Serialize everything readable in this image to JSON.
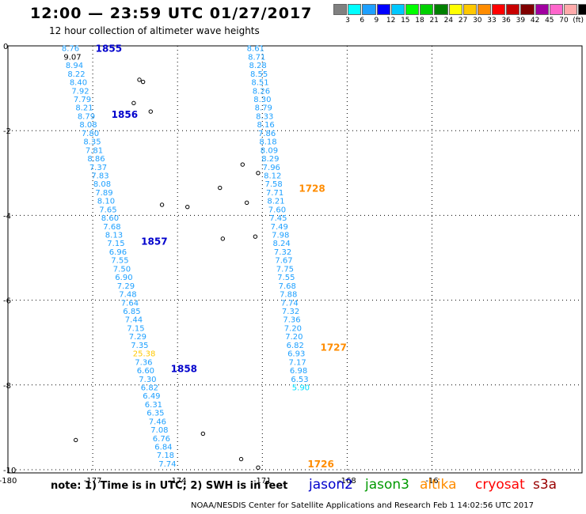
{
  "header": {
    "title": "12:00 — 23:59 UTC 01/27/2017",
    "subtitle": "12 hour collection of altimeter wave heights"
  },
  "scale": {
    "colors": [
      "#808080",
      "#00ffff",
      "#1ea0ff",
      "#0000ff",
      "#00c8ff",
      "#00ff00",
      "#00d000",
      "#008000",
      "#ffff00",
      "#ffc800",
      "#ff8c00",
      "#ff0000",
      "#c80000",
      "#800000",
      "#a000a0",
      "#ff66cc",
      "#ffaaaa",
      "#000000"
    ],
    "labels": [
      "3",
      "6",
      "9",
      "12",
      "15",
      "18",
      "21",
      "24",
      "27",
      "30",
      "33",
      "36",
      "39",
      "42",
      "45",
      "70",
      "(ft)"
    ]
  },
  "map": {
    "lon_ticks": [
      "-180",
      "-177",
      "-174",
      "-171",
      "-168",
      "-16"
    ],
    "lat_ticks": [
      "0",
      "-2",
      "-4",
      "-6",
      "-8",
      "-10"
    ]
  },
  "tracks": [
    {
      "satellite": "jason2",
      "pass_labels": [
        {
          "text": "1855",
          "lat": -0.05
        },
        {
          "text": "1856",
          "lat": -1.6
        },
        {
          "text": "1857",
          "lat": -4.6
        },
        {
          "text": "1858",
          "lat": -7.6
        }
      ],
      "values": [
        {
          "text": "8.76",
          "lat": -0.05,
          "lon": -178.1
        },
        {
          "text": "9.07",
          "lat": -0.25,
          "lon": -178.03,
          "color": "#000000"
        },
        {
          "text": "8.94",
          "lat": -0.45,
          "lon": -177.96
        },
        {
          "text": "8.22",
          "lat": -0.65,
          "lon": -177.89
        },
        {
          "text": "8.40",
          "lat": -0.85,
          "lon": -177.82
        },
        {
          "text": "7.92",
          "lat": -1.05,
          "lon": -177.75
        },
        {
          "text": "7.79",
          "lat": -1.25,
          "lon": -177.68
        },
        {
          "text": "8.21",
          "lat": -1.45,
          "lon": -177.61
        },
        {
          "text": "8.79",
          "lat": -1.65,
          "lon": -177.54
        },
        {
          "text": "8.08",
          "lat": -1.85,
          "lon": -177.47
        },
        {
          "text": "7.80",
          "lat": -2.05,
          "lon": -177.4
        },
        {
          "text": "8.35",
          "lat": -2.25,
          "lon": -177.33
        },
        {
          "text": "7.81",
          "lat": -2.45,
          "lon": -177.26
        },
        {
          "text": "8.86",
          "lat": -2.65,
          "lon": -177.19
        },
        {
          "text": "7.37",
          "lat": -2.85,
          "lon": -177.12
        },
        {
          "text": "7.83",
          "lat": -3.05,
          "lon": -177.05
        },
        {
          "text": "8.08",
          "lat": -3.25,
          "lon": -176.98
        },
        {
          "text": "7.89",
          "lat": -3.45,
          "lon": -176.91
        },
        {
          "text": "8.10",
          "lat": -3.65,
          "lon": -176.84
        },
        {
          "text": "7.65",
          "lat": -3.85,
          "lon": -176.77
        },
        {
          "text": "8.60",
          "lat": -4.05,
          "lon": -176.7
        },
        {
          "text": "7.68",
          "lat": -4.25,
          "lon": -176.63
        },
        {
          "text": "8.13",
          "lat": -4.45,
          "lon": -176.56
        },
        {
          "text": "7.15",
          "lat": -4.65,
          "lon": -176.49
        },
        {
          "text": "6.96",
          "lat": -4.85,
          "lon": -176.42
        },
        {
          "text": "7.55",
          "lat": -5.05,
          "lon": -176.35
        },
        {
          "text": "7.50",
          "lat": -5.25,
          "lon": -176.28
        },
        {
          "text": "6.90",
          "lat": -5.45,
          "lon": -176.21
        },
        {
          "text": "7.29",
          "lat": -5.65,
          "lon": -176.14
        },
        {
          "text": "7.48",
          "lat": -5.85,
          "lon": -176.07
        },
        {
          "text": "7.64",
          "lat": -6.05,
          "lon": -176.0
        },
        {
          "text": "6.85",
          "lat": -6.25,
          "lon": -175.93
        },
        {
          "text": "7.44",
          "lat": -6.45,
          "lon": -175.86
        },
        {
          "text": "7.15",
          "lat": -6.65,
          "lon": -175.79
        },
        {
          "text": "7.29",
          "lat": -6.85,
          "lon": -175.72
        },
        {
          "text": "7.35",
          "lat": -7.05,
          "lon": -175.65
        },
        {
          "text": "25.38",
          "lat": -7.25,
          "lon": -175.58,
          "color": "#ffc800"
        },
        {
          "text": "7.36",
          "lat": -7.45,
          "lon": -175.51
        },
        {
          "text": "6.60",
          "lat": -7.65,
          "lon": -175.44
        },
        {
          "text": "7.30",
          "lat": -7.85,
          "lon": -175.37
        },
        {
          "text": "6.82",
          "lat": -8.05,
          "lon": -175.3
        },
        {
          "text": "6.49",
          "lat": -8.25,
          "lon": -175.23
        },
        {
          "text": "6.31",
          "lat": -8.45,
          "lon": -175.16
        },
        {
          "text": "6.35",
          "lat": -8.65,
          "lon": -175.09
        },
        {
          "text": "7.46",
          "lat": -8.85,
          "lon": -175.02
        },
        {
          "text": "7.08",
          "lat": -9.05,
          "lon": -174.95
        },
        {
          "text": "6.76",
          "lat": -9.25,
          "lon": -174.88
        },
        {
          "text": "6.84",
          "lat": -9.45,
          "lon": -174.81
        },
        {
          "text": "7.18",
          "lat": -9.65,
          "lon": -174.74
        },
        {
          "text": "7.74",
          "lat": -9.85,
          "lon": -174.67
        }
      ]
    },
    {
      "satellite": "altika",
      "pass_labels": [
        {
          "text": "1728",
          "lat": -3.35
        },
        {
          "text": "1727",
          "lat": -7.1
        },
        {
          "text": "1726",
          "lat": -9.85
        }
      ],
      "values": [
        {
          "text": "8.61",
          "lat": -0.05,
          "lon": -171.55
        },
        {
          "text": "8.71",
          "lat": -0.25,
          "lon": -171.51
        },
        {
          "text": "8.28",
          "lat": -0.45,
          "lon": -171.47
        },
        {
          "text": "8.55",
          "lat": -0.65,
          "lon": -171.43
        },
        {
          "text": "8.51",
          "lat": -0.85,
          "lon": -171.39
        },
        {
          "text": "8.26",
          "lat": -1.05,
          "lon": -171.35
        },
        {
          "text": "8.30",
          "lat": -1.25,
          "lon": -171.31
        },
        {
          "text": "8.79",
          "lat": -1.45,
          "lon": -171.27
        },
        {
          "text": "8.33",
          "lat": -1.65,
          "lon": -171.23
        },
        {
          "text": "8.16",
          "lat": -1.85,
          "lon": -171.19
        },
        {
          "text": "7.86",
          "lat": -2.05,
          "lon": -171.15
        },
        {
          "text": "8.18",
          "lat": -2.25,
          "lon": -171.11
        },
        {
          "text": "8.09",
          "lat": -2.45,
          "lon": -171.07
        },
        {
          "text": "8.29",
          "lat": -2.65,
          "lon": -171.03
        },
        {
          "text": "7.96",
          "lat": -2.85,
          "lon": -170.99
        },
        {
          "text": "8.12",
          "lat": -3.05,
          "lon": -170.95
        },
        {
          "text": "7.58",
          "lat": -3.25,
          "lon": -170.91
        },
        {
          "text": "7.71",
          "lat": -3.45,
          "lon": -170.87
        },
        {
          "text": "8.21",
          "lat": -3.65,
          "lon": -170.83
        },
        {
          "text": "7.60",
          "lat": -3.85,
          "lon": -170.79
        },
        {
          "text": "7.45",
          "lat": -4.05,
          "lon": -170.75
        },
        {
          "text": "7.49",
          "lat": -4.25,
          "lon": -170.71
        },
        {
          "text": "7.98",
          "lat": -4.45,
          "lon": -170.67
        },
        {
          "text": "8.24",
          "lat": -4.65,
          "lon": -170.63
        },
        {
          "text": "7.32",
          "lat": -4.85,
          "lon": -170.59
        },
        {
          "text": "7.67",
          "lat": -5.05,
          "lon": -170.55
        },
        {
          "text": "7.75",
          "lat": -5.25,
          "lon": -170.51
        },
        {
          "text": "7.55",
          "lat": -5.45,
          "lon": -170.47
        },
        {
          "text": "7.68",
          "lat": -5.65,
          "lon": -170.43
        },
        {
          "text": "7.88",
          "lat": -5.85,
          "lon": -170.39
        },
        {
          "text": "7.74",
          "lat": -6.05,
          "lon": -170.35
        },
        {
          "text": "7.32",
          "lat": -6.25,
          "lon": -170.31
        },
        {
          "text": "7.36",
          "lat": -6.45,
          "lon": -170.27
        },
        {
          "text": "7.20",
          "lat": -6.65,
          "lon": -170.23
        },
        {
          "text": "7.20",
          "lat": -6.85,
          "lon": -170.19
        },
        {
          "text": "6.82",
          "lat": -7.05,
          "lon": -170.15
        },
        {
          "text": "6.93",
          "lat": -7.25,
          "lon": -170.11
        },
        {
          "text": "7.17",
          "lat": -7.45,
          "lon": -170.07
        },
        {
          "text": "6.98",
          "lat": -7.65,
          "lon": -170.03
        },
        {
          "text": "6.53",
          "lat": -7.85,
          "lon": -169.99
        },
        {
          "text": "5.90",
          "lat": -8.05,
          "lon": -169.95,
          "color": "#00e0ff"
        }
      ]
    }
  ],
  "islands": [
    {
      "lat": -0.8,
      "lon": -175.35
    },
    {
      "lat": -0.85,
      "lon": -175.22
    },
    {
      "lat": -1.35,
      "lon": -175.55
    },
    {
      "lat": -1.55,
      "lon": -174.95
    },
    {
      "lat": -3.75,
      "lon": -174.55
    },
    {
      "lat": -3.35,
      "lon": -172.5
    },
    {
      "lat": -3.8,
      "lon": -173.65
    },
    {
      "lat": -2.8,
      "lon": -171.7
    },
    {
      "lat": -3.0,
      "lon": -171.15
    },
    {
      "lat": -3.7,
      "lon": -171.55
    },
    {
      "lat": -4.55,
      "lon": -172.4
    },
    {
      "lat": -4.5,
      "lon": -171.25
    },
    {
      "lat": -9.15,
      "lon": -173.1
    },
    {
      "lat": -9.3,
      "lon": -177.6
    },
    {
      "lat": -9.75,
      "lon": -171.75
    },
    {
      "lat": -9.95,
      "lon": -171.15
    }
  ],
  "colors": {
    "jason2": "#0000cc",
    "jason3": "#009900",
    "altika": "#ff8c00",
    "cryosat": "#ff0000",
    "s3a": "#990000",
    "default_value": "#1ea0ff"
  },
  "legend": {
    "note": "note: 1) Time is in UTC; 2) SWH is in feet",
    "satellites": [
      "jason2",
      "jason3",
      "altika",
      "cryosat",
      "s3a"
    ]
  },
  "footer": "NOAA/NESDIS Center for Satellite Applications and Research    Feb  1 14:02:56 UTC 2017"
}
